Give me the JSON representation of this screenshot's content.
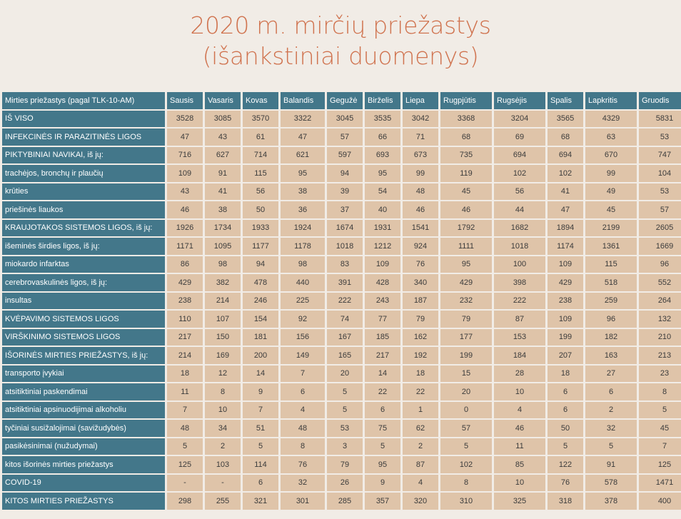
{
  "title": {
    "line1": "2020 m. mirčių priežastys",
    "line2": "(išankstiniai duomenys)"
  },
  "table": {
    "header_first": "Mirties priežastys (pagal TLK-10-AM)",
    "months": [
      "Sausis",
      "Vasaris",
      "Kovas",
      "Balandis",
      "Gegužė",
      "Birželis",
      "Liepa",
      "Rugpjūtis",
      "Rugsėjis",
      "Spalis",
      "Lapkritis",
      "Gruodis"
    ],
    "rows": [
      {
        "label": "IŠ VISO",
        "values": [
          "3528",
          "3085",
          "3570",
          "3322",
          "3045",
          "3535",
          "3042",
          "3368",
          "3204",
          "3565",
          "4329",
          "5831"
        ]
      },
      {
        "label": "INFEKCINĖS IR PARAZITINĖS LIGOS",
        "values": [
          "47",
          "43",
          "61",
          "47",
          "57",
          "66",
          "71",
          "68",
          "69",
          "68",
          "63",
          "53"
        ]
      },
      {
        "label": "PIKTYBINIAI NAVIKAI, iš jų:",
        "values": [
          "716",
          "627",
          "714",
          "621",
          "597",
          "693",
          "673",
          "735",
          "694",
          "694",
          "670",
          "747"
        ]
      },
      {
        "label": "trachėjos, bronchų ir plaučių",
        "values": [
          "109",
          "91",
          "115",
          "95",
          "94",
          "95",
          "99",
          "119",
          "102",
          "102",
          "99",
          "104"
        ]
      },
      {
        "label": "krūties",
        "values": [
          "43",
          "41",
          "56",
          "38",
          "39",
          "54",
          "48",
          "45",
          "56",
          "41",
          "49",
          "53"
        ]
      },
      {
        "label": "priešinės liaukos",
        "values": [
          "46",
          "38",
          "50",
          "36",
          "37",
          "40",
          "46",
          "46",
          "44",
          "47",
          "45",
          "57"
        ]
      },
      {
        "label": "KRAUJOTAKOS SISTEMOS LIGOS, iš jų:",
        "values": [
          "1926",
          "1734",
          "1933",
          "1924",
          "1674",
          "1931",
          "1541",
          "1792",
          "1682",
          "1894",
          "2199",
          "2605"
        ]
      },
      {
        "label": "išeminės širdies ligos, iš jų:",
        "values": [
          "1171",
          "1095",
          "1177",
          "1178",
          "1018",
          "1212",
          "924",
          "1111",
          "1018",
          "1174",
          "1361",
          "1669"
        ]
      },
      {
        "label": "miokardo infarktas",
        "values": [
          "86",
          "98",
          "94",
          "98",
          "83",
          "109",
          "76",
          "95",
          "100",
          "109",
          "115",
          "96"
        ]
      },
      {
        "label": "cerebrovaskulinės ligos, iš jų:",
        "values": [
          "429",
          "382",
          "478",
          "440",
          "391",
          "428",
          "340",
          "429",
          "398",
          "429",
          "518",
          "552"
        ]
      },
      {
        "label": "insultas",
        "values": [
          "238",
          "214",
          "246",
          "225",
          "222",
          "243",
          "187",
          "232",
          "222",
          "238",
          "259",
          "264"
        ]
      },
      {
        "label": "KVĖPAVIMO SISTEMOS LIGOS",
        "values": [
          "110",
          "107",
          "154",
          "92",
          "74",
          "77",
          "79",
          "79",
          "87",
          "109",
          "96",
          "132"
        ]
      },
      {
        "label": "VIRŠKINIMO SISTEMOS LIGOS",
        "values": [
          "217",
          "150",
          "181",
          "156",
          "167",
          "185",
          "162",
          "177",
          "153",
          "199",
          "182",
          "210"
        ]
      },
      {
        "label": "IŠORINĖS MIRTIES PRIEŽASTYS, iš jų:",
        "values": [
          "214",
          "169",
          "200",
          "149",
          "165",
          "217",
          "192",
          "199",
          "184",
          "207",
          "163",
          "213"
        ]
      },
      {
        "label": "transporto įvykiai",
        "values": [
          "18",
          "12",
          "14",
          "7",
          "20",
          "14",
          "18",
          "15",
          "28",
          "18",
          "27",
          "23"
        ]
      },
      {
        "label": "atsitiktiniai paskendimai",
        "values": [
          "11",
          "8",
          "9",
          "6",
          "5",
          "22",
          "22",
          "20",
          "10",
          "6",
          "6",
          "8"
        ]
      },
      {
        "label": "atsitiktiniai apsinuodijimai alkoholiu",
        "values": [
          "7",
          "10",
          "7",
          "4",
          "5",
          "6",
          "1",
          "0",
          "4",
          "6",
          "2",
          "5"
        ]
      },
      {
        "label": "tyčiniai susižalojimai (savižudybės)",
        "values": [
          "48",
          "34",
          "51",
          "48",
          "53",
          "75",
          "62",
          "57",
          "46",
          "50",
          "32",
          "45"
        ]
      },
      {
        "label": "pasikėsinimai (nužudymai)",
        "values": [
          "5",
          "2",
          "5",
          "8",
          "3",
          "5",
          "2",
          "5",
          "11",
          "5",
          "5",
          "7"
        ]
      },
      {
        "label": "kitos išorinės mirties priežastys",
        "values": [
          "125",
          "103",
          "114",
          "76",
          "79",
          "95",
          "87",
          "102",
          "85",
          "122",
          "91",
          "125"
        ]
      },
      {
        "label": "COVID-19",
        "values": [
          "-",
          "-",
          "6",
          "32",
          "26",
          "9",
          "4",
          "8",
          "10",
          "76",
          "578",
          "1471"
        ]
      },
      {
        "label": "KITOS MIRTIES PRIEŽASTYS",
        "values": [
          "298",
          "255",
          "321",
          "301",
          "285",
          "357",
          "320",
          "310",
          "325",
          "318",
          "378",
          "400"
        ]
      }
    ]
  },
  "colors": {
    "title": "#d0734f",
    "header_bg": "#43778a",
    "cell_bg": "#dfc4a9",
    "page_bg": "#f1ece6"
  }
}
